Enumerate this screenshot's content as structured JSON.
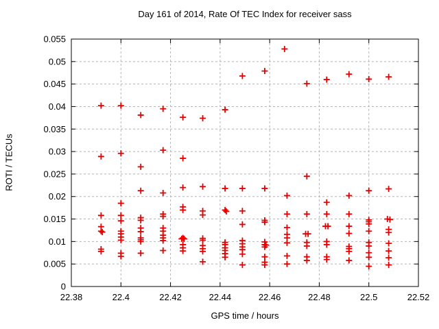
{
  "chart_data": {
    "type": "scatter",
    "title": "Day 161 of 2014, Rate Of TEC Index for receiver sass",
    "xlabel": "GPS time / hours",
    "ylabel": "ROTI / TECUs",
    "xlim": [
      22.38,
      22.52
    ],
    "ylim": [
      0,
      0.055
    ],
    "xticks": {
      "values": [
        22.38,
        22.4,
        22.42,
        22.44,
        22.46,
        22.48,
        22.5,
        22.52
      ],
      "labels": [
        "22.38",
        "22.4",
        "22.42",
        "22.44",
        "22.46",
        "22.48",
        "22.5",
        "22.52"
      ]
    },
    "yticks": {
      "values": [
        0,
        0.005,
        0.01,
        0.015,
        0.02,
        0.025,
        0.03,
        0.035,
        0.04,
        0.045,
        0.05,
        0.055
      ],
      "labels": [
        "0",
        "0.005",
        "0.01",
        "0.015",
        "0.02",
        "0.025",
        "0.03",
        "0.035",
        "0.04",
        "0.045",
        "0.05",
        "0.055"
      ]
    },
    "grid": true,
    "legend_position": "none",
    "marker": "plus",
    "colors": {
      "marker": "#e60000",
      "grid": "#b4b4b4",
      "axis": "#000000",
      "background": "#ffffff",
      "text": "#000000"
    },
    "series": [
      {
        "name": "ROTI",
        "points": [
          [
            22.392,
            0.0402
          ],
          [
            22.392,
            0.0289
          ],
          [
            22.392,
            0.0158
          ],
          [
            22.392,
            0.0133
          ],
          [
            22.392,
            0.0123
          ],
          [
            22.3925,
            0.0121
          ],
          [
            22.392,
            0.0083
          ],
          [
            22.392,
            0.0078
          ],
          [
            22.4,
            0.0402
          ],
          [
            22.4,
            0.0296
          ],
          [
            22.4,
            0.0185
          ],
          [
            22.4,
            0.0158
          ],
          [
            22.4,
            0.0146
          ],
          [
            22.4,
            0.0123
          ],
          [
            22.4,
            0.0117
          ],
          [
            22.4,
            0.011
          ],
          [
            22.4,
            0.0103
          ],
          [
            22.4,
            0.0074
          ],
          [
            22.4,
            0.0067
          ],
          [
            22.408,
            0.0381
          ],
          [
            22.408,
            0.0266
          ],
          [
            22.408,
            0.0213
          ],
          [
            22.408,
            0.0153
          ],
          [
            22.408,
            0.0147
          ],
          [
            22.408,
            0.013
          ],
          [
            22.408,
            0.0122
          ],
          [
            22.408,
            0.0108
          ],
          [
            22.408,
            0.0104
          ],
          [
            22.408,
            0.01
          ],
          [
            22.408,
            0.0074
          ],
          [
            22.417,
            0.0395
          ],
          [
            22.417,
            0.0303
          ],
          [
            22.417,
            0.0208
          ],
          [
            22.417,
            0.0161
          ],
          [
            22.417,
            0.0156
          ],
          [
            22.417,
            0.013
          ],
          [
            22.417,
            0.0123
          ],
          [
            22.417,
            0.0114
          ],
          [
            22.417,
            0.0108
          ],
          [
            22.417,
            0.0102
          ],
          [
            22.417,
            0.008
          ],
          [
            22.425,
            0.0376
          ],
          [
            22.425,
            0.0285
          ],
          [
            22.425,
            0.022
          ],
          [
            22.425,
            0.0177
          ],
          [
            22.425,
            0.017
          ],
          [
            22.425,
            0.0108
          ],
          [
            22.4245,
            0.0106
          ],
          [
            22.4255,
            0.0106
          ],
          [
            22.425,
            0.0093
          ],
          [
            22.425,
            0.0086
          ],
          [
            22.425,
            0.0079
          ],
          [
            22.433,
            0.0374
          ],
          [
            22.433,
            0.0222
          ],
          [
            22.433,
            0.0168
          ],
          [
            22.433,
            0.0159
          ],
          [
            22.433,
            0.0107
          ],
          [
            22.433,
            0.0103
          ],
          [
            22.433,
            0.0091
          ],
          [
            22.433,
            0.0084
          ],
          [
            22.433,
            0.0078
          ],
          [
            22.433,
            0.0055
          ],
          [
            22.442,
            0.0393
          ],
          [
            22.442,
            0.0218
          ],
          [
            22.442,
            0.017
          ],
          [
            22.4425,
            0.0167
          ],
          [
            22.442,
            0.0098
          ],
          [
            22.442,
            0.0093
          ],
          [
            22.442,
            0.0086
          ],
          [
            22.442,
            0.008
          ],
          [
            22.442,
            0.0073
          ],
          [
            22.442,
            0.0065
          ],
          [
            22.449,
            0.0468
          ],
          [
            22.449,
            0.0218
          ],
          [
            22.449,
            0.0168
          ],
          [
            22.449,
            0.0138
          ],
          [
            22.449,
            0.0102
          ],
          [
            22.449,
            0.0095
          ],
          [
            22.449,
            0.0088
          ],
          [
            22.449,
            0.0082
          ],
          [
            22.449,
            0.0072
          ],
          [
            22.449,
            0.0048
          ],
          [
            22.458,
            0.0479
          ],
          [
            22.458,
            0.0218
          ],
          [
            22.458,
            0.0147
          ],
          [
            22.458,
            0.0143
          ],
          [
            22.458,
            0.0099
          ],
          [
            22.458,
            0.0093
          ],
          [
            22.4585,
            0.0092
          ],
          [
            22.458,
            0.0088
          ],
          [
            22.458,
            0.0066
          ],
          [
            22.458,
            0.0054
          ],
          [
            22.458,
            0.0048
          ],
          [
            22.466,
            0.0528
          ],
          [
            22.467,
            0.0202
          ],
          [
            22.467,
            0.0161
          ],
          [
            22.467,
            0.0131
          ],
          [
            22.467,
            0.0116
          ],
          [
            22.467,
            0.0108
          ],
          [
            22.467,
            0.0097
          ],
          [
            22.467,
            0.0068
          ],
          [
            22.467,
            0.005
          ],
          [
            22.475,
            0.0451
          ],
          [
            22.475,
            0.0245
          ],
          [
            22.475,
            0.0161
          ],
          [
            22.4745,
            0.0117
          ],
          [
            22.4755,
            0.0117
          ],
          [
            22.475,
            0.0098
          ],
          [
            22.475,
            0.009
          ],
          [
            22.475,
            0.0066
          ],
          [
            22.475,
            0.0058
          ],
          [
            22.483,
            0.046
          ],
          [
            22.483,
            0.0187
          ],
          [
            22.483,
            0.0161
          ],
          [
            22.4825,
            0.0134
          ],
          [
            22.4835,
            0.0134
          ],
          [
            22.483,
            0.01
          ],
          [
            22.483,
            0.0093
          ],
          [
            22.483,
            0.0066
          ],
          [
            22.483,
            0.006
          ],
          [
            22.492,
            0.0472
          ],
          [
            22.492,
            0.0202
          ],
          [
            22.492,
            0.0161
          ],
          [
            22.492,
            0.0134
          ],
          [
            22.492,
            0.0118
          ],
          [
            22.492,
            0.0089
          ],
          [
            22.492,
            0.0084
          ],
          [
            22.492,
            0.0078
          ],
          [
            22.492,
            0.0058
          ],
          [
            22.5,
            0.0461
          ],
          [
            22.5,
            0.0213
          ],
          [
            22.5,
            0.0148
          ],
          [
            22.5,
            0.0144
          ],
          [
            22.5,
            0.0139
          ],
          [
            22.5,
            0.0123
          ],
          [
            22.5,
            0.0098
          ],
          [
            22.5,
            0.009
          ],
          [
            22.5,
            0.0075
          ],
          [
            22.5,
            0.0065
          ],
          [
            22.5,
            0.0045
          ],
          [
            22.508,
            0.0466
          ],
          [
            22.508,
            0.0217
          ],
          [
            22.5075,
            0.015
          ],
          [
            22.5085,
            0.0149
          ],
          [
            22.508,
            0.0127
          ],
          [
            22.508,
            0.012
          ],
          [
            22.508,
            0.0096
          ],
          [
            22.508,
            0.0079
          ],
          [
            22.508,
            0.0064
          ],
          [
            22.508,
            0.0048
          ]
        ]
      }
    ]
  }
}
